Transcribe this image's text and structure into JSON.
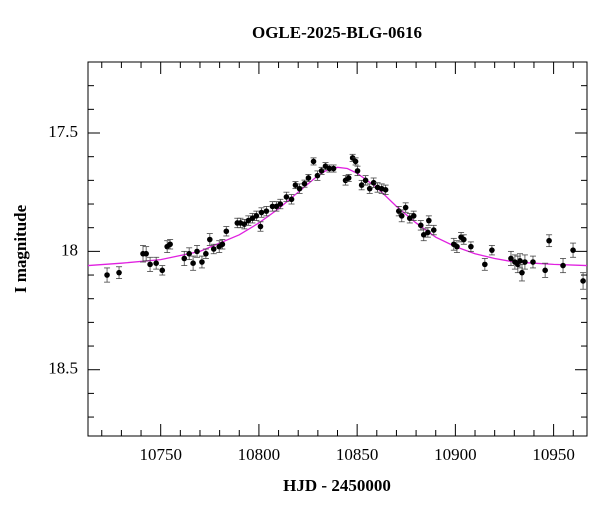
{
  "chart_data": {
    "type": "scatter",
    "title": "OGLE-2025-BLG-0616",
    "x_label": "HJD - 2450000",
    "y_label": "I magnitude",
    "xlim": [
      10713,
      10967
    ],
    "ylim": [
      17.2,
      18.78
    ],
    "y_inverted": true,
    "xticks": [
      10750,
      10800,
      10850,
      10900,
      10950
    ],
    "yticks": [
      17.5,
      18,
      18.5
    ],
    "xminor_ticks": [
      10720,
      10730,
      10740,
      10760,
      10770,
      10780,
      10790,
      10810,
      10820,
      10830,
      10840,
      10860,
      10870,
      10880,
      10890,
      10910,
      10920,
      10930,
      10940,
      10960
    ],
    "yminor_ticks": [
      17.3,
      17.4,
      17.6,
      17.7,
      17.8,
      17.9,
      18.1,
      18.2,
      18.3,
      18.4,
      18.6,
      18.7
    ],
    "points": {
      "color": "#000000",
      "x": [
        10722.7,
        10728.8,
        10741,
        10742.6,
        10744.6,
        10747.7,
        10750.8,
        10753.3,
        10754.8,
        10762,
        10764.5,
        10766.5,
        10768.5,
        10771,
        10773,
        10775,
        10777,
        10779.8,
        10781.4,
        10783.4,
        10789,
        10790.6,
        10792.6,
        10794.6,
        10796.7,
        10798.7,
        10800.8,
        10801.3,
        10803.8,
        10806.9,
        10808.9,
        10810.9,
        10814,
        10816.6,
        10818.6,
        10820.7,
        10823.2,
        10825.2,
        10827.8,
        10829.8,
        10831.9,
        10833.9,
        10835.9,
        10838,
        10844.1,
        10845.7,
        10847.7,
        10849.2,
        10850.2,
        10852.3,
        10854.3,
        10856.4,
        10858.4,
        10860.4,
        10862.5,
        10864.5,
        10871.2,
        10872.7,
        10874.7,
        10876.8,
        10878.8,
        10882.4,
        10883.9,
        10886,
        10886.5,
        10889,
        10899.2,
        10900.8,
        10902.9,
        10904.3,
        10907.9,
        10915,
        10918.6,
        10928.3,
        10930.3,
        10931.8,
        10932.9,
        10933.9,
        10935.4,
        10939.5,
        10945.7,
        10947.7,
        10954.8,
        10959.9,
        10965
      ],
      "values": [
        18.1,
        18.09,
        18.01,
        18.01,
        18.055,
        18.05,
        18.08,
        17.98,
        17.97,
        18.03,
        18.01,
        18.05,
        18.0,
        18.045,
        18.01,
        17.95,
        17.99,
        17.98,
        17.97,
        17.915,
        17.88,
        17.88,
        17.885,
        17.87,
        17.86,
        17.85,
        17.895,
        17.836,
        17.83,
        17.81,
        17.81,
        17.8,
        17.77,
        17.78,
        17.72,
        17.735,
        17.714,
        17.69,
        17.62,
        17.68,
        17.66,
        17.64,
        17.65,
        17.65,
        17.7,
        17.69,
        17.605,
        17.62,
        17.66,
        17.72,
        17.7,
        17.735,
        17.71,
        17.73,
        17.735,
        17.74,
        17.83,
        17.85,
        17.815,
        17.86,
        17.85,
        17.89,
        17.93,
        17.92,
        17.87,
        17.91,
        17.97,
        17.98,
        17.94,
        17.95,
        17.98,
        18.055,
        17.995,
        18.03,
        18.045,
        18.055,
        18.04,
        18.09,
        18.045,
        18.045,
        18.08,
        17.955,
        18.06,
        17.995,
        18.125
      ],
      "errors": [
        0.03,
        0.025,
        0.035,
        0.03,
        0.03,
        0.025,
        0.02,
        0.025,
        0.02,
        0.03,
        0.025,
        0.03,
        0.025,
        0.025,
        0.02,
        0.025,
        0.02,
        0.025,
        0.02,
        0.02,
        0.02,
        0.02,
        0.02,
        0.02,
        0.02,
        0.02,
        0.02,
        0.02,
        0.02,
        0.02,
        0.02,
        0.02,
        0.02,
        0.02,
        0.015,
        0.02,
        0.015,
        0.015,
        0.015,
        0.02,
        0.015,
        0.015,
        0.015,
        0.015,
        0.02,
        0.015,
        0.015,
        0.015,
        0.02,
        0.02,
        0.02,
        0.02,
        0.02,
        0.02,
        0.02,
        0.02,
        0.02,
        0.025,
        0.02,
        0.02,
        0.02,
        0.02,
        0.025,
        0.02,
        0.02,
        0.02,
        0.025,
        0.025,
        0.02,
        0.02,
        0.02,
        0.025,
        0.02,
        0.03,
        0.03,
        0.035,
        0.03,
        0.035,
        0.03,
        0.025,
        0.03,
        0.025,
        0.03,
        0.03,
        0.035
      ]
    },
    "model": {
      "color": "#e020e0",
      "x": [
        10713,
        10730,
        10750,
        10770,
        10790,
        10800,
        10810,
        10820,
        10830,
        10835,
        10840,
        10845,
        10850,
        10860,
        10870,
        10880,
        10890,
        10900,
        10910,
        10920,
        10930,
        10940,
        10950,
        10967
      ],
      "values": [
        18.06,
        18.05,
        18.035,
        18.0,
        17.93,
        17.88,
        17.82,
        17.75,
        17.68,
        17.655,
        17.645,
        17.65,
        17.67,
        17.73,
        17.81,
        17.88,
        17.94,
        17.98,
        18.01,
        18.03,
        18.045,
        18.05,
        18.055,
        18.06
      ]
    }
  }
}
